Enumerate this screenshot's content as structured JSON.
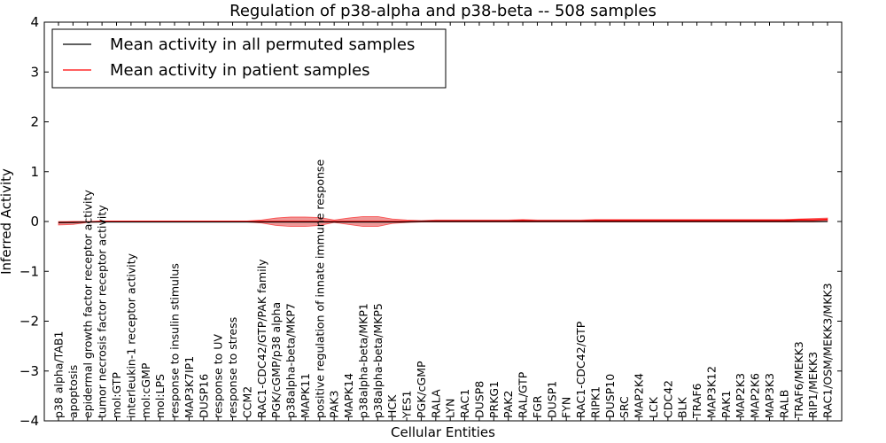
{
  "chart_data": {
    "type": "line",
    "title": "Regulation of p38-alpha and p38-beta -- 508 samples",
    "xlabel": "Cellular Entities",
    "ylabel": "Inferred Activity",
    "ylim": [
      -4,
      4
    ],
    "yticks": [
      4,
      3,
      2,
      1,
      0,
      -1,
      -2,
      -3,
      -4
    ],
    "ytick_labels": [
      "4",
      "3",
      "2",
      "1",
      "0",
      "−1",
      "−2",
      "−3",
      "−4"
    ],
    "grid": false,
    "legend_position": "top-left",
    "categories": [
      "p38 alpha/TAB1",
      "apoptosis",
      "epidermal growth factor receptor activity",
      "tumor necrosis factor receptor activity",
      "mol:GTP",
      "interleukin-1 receptor activity",
      "mol:cGMP",
      "mol:LPS",
      "response to insulin stimulus",
      "MAP3K7IP1",
      "DUSP16",
      "response to UV",
      "response to stress",
      "CCM2",
      "RAC1-CDC42/GTP/PAK family",
      "PGK/cGMP/p38 alpha",
      "p38alpha-beta/MKP7",
      "MAPK11",
      "positive regulation of innate immune response",
      "PAK3",
      "MAPK14",
      "p38alpha-beta/MKP1",
      "p38alpha-beta/MKP5",
      "HCK",
      "YES1",
      "PGK/cGMP",
      "RALA",
      "LYN",
      "RAC1",
      "DUSP8",
      "PRKG1",
      "PAK2",
      "RAL/GTP",
      "FGR",
      "DUSP1",
      "FYN",
      "RAC1-CDC42/GTP",
      "RIPK1",
      "DUSP10",
      "SRC",
      "MAP2K4",
      "LCK",
      "CDC42",
      "BLK",
      "TRAF6",
      "MAP3K12",
      "PAK1",
      "MAP2K3",
      "MAP2K6",
      "MAP3K3",
      "RALB",
      "TRAF6/MEKK3",
      "RIP1/MEKK3",
      "RAC1/OSM/MEKK3/MKK3"
    ],
    "series": [
      {
        "name": "Mean activity in all permuted samples",
        "color": "#000000",
        "values": [
          -0.02,
          -0.02,
          -0.01,
          -0.01,
          -0.01,
          -0.01,
          -0.01,
          -0.01,
          -0.01,
          -0.01,
          -0.01,
          -0.01,
          -0.01,
          -0.01,
          -0.01,
          -0.01,
          -0.01,
          -0.01,
          -0.01,
          -0.01,
          -0.01,
          -0.01,
          -0.01,
          -0.01,
          -0.01,
          0.0,
          0.0,
          0.0,
          0.0,
          0.0,
          0.0,
          0.0,
          0.0,
          0.0,
          0.0,
          0.0,
          0.0,
          0.0,
          0.0,
          0.0,
          0.0,
          0.0,
          0.0,
          0.0,
          0.0,
          0.0,
          0.0,
          0.0,
          0.0,
          0.0,
          0.0,
          0.0,
          0.0,
          0.0
        ]
      },
      {
        "name": "Mean activity in patient samples",
        "color": "#ff0000",
        "band_color": "#e03030",
        "values": [
          -0.02,
          -0.01,
          -0.01,
          0.0,
          0.0,
          0.0,
          0.0,
          0.0,
          0.0,
          0.0,
          0.0,
          0.0,
          0.0,
          0.0,
          0.0,
          0.0,
          0.0,
          0.0,
          0.0,
          0.0,
          0.0,
          0.0,
          0.0,
          0.0,
          0.0,
          0.0,
          0.01,
          0.01,
          0.01,
          0.01,
          0.01,
          0.01,
          0.02,
          0.01,
          0.01,
          0.01,
          0.01,
          0.02,
          0.02,
          0.02,
          0.02,
          0.02,
          0.02,
          0.02,
          0.02,
          0.02,
          0.02,
          0.02,
          0.02,
          0.02,
          0.02,
          0.03,
          0.03,
          0.04
        ],
        "band_lower": [
          -0.07,
          -0.06,
          -0.02,
          -0.01,
          -0.01,
          -0.01,
          -0.01,
          -0.01,
          -0.01,
          -0.01,
          -0.01,
          -0.01,
          -0.01,
          -0.01,
          -0.03,
          -0.08,
          -0.1,
          -0.1,
          -0.08,
          -0.02,
          -0.06,
          -0.1,
          -0.1,
          -0.04,
          -0.02,
          -0.01,
          -0.01,
          -0.01,
          -0.01,
          -0.01,
          -0.01,
          -0.01,
          -0.01,
          -0.01,
          -0.01,
          -0.01,
          -0.01,
          -0.01,
          -0.01,
          -0.01,
          -0.01,
          -0.01,
          -0.01,
          -0.01,
          -0.01,
          -0.01,
          -0.01,
          -0.01,
          -0.01,
          -0.01,
          -0.01,
          -0.01,
          -0.01,
          0.0
        ],
        "band_upper": [
          0.0,
          0.0,
          0.0,
          0.01,
          0.01,
          0.01,
          0.01,
          0.01,
          0.01,
          0.01,
          0.01,
          0.01,
          0.01,
          0.01,
          0.03,
          0.07,
          0.09,
          0.09,
          0.08,
          0.03,
          0.07,
          0.1,
          0.1,
          0.05,
          0.03,
          0.02,
          0.03,
          0.03,
          0.03,
          0.03,
          0.03,
          0.03,
          0.04,
          0.03,
          0.03,
          0.03,
          0.03,
          0.04,
          0.04,
          0.04,
          0.04,
          0.04,
          0.04,
          0.04,
          0.04,
          0.04,
          0.04,
          0.04,
          0.04,
          0.04,
          0.04,
          0.05,
          0.06,
          0.07
        ]
      }
    ]
  }
}
